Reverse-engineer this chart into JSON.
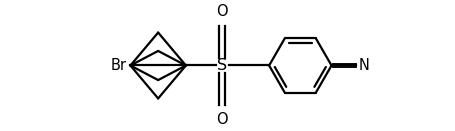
{
  "bg_color": "#ffffff",
  "line_color": "#000000",
  "line_width": 1.6,
  "font_size": 10.5,
  "figsize": [
    4.55,
    1.31
  ],
  "dpi": 100,
  "xlim": [
    0,
    10
  ],
  "ylim": [
    -1.8,
    1.8
  ]
}
